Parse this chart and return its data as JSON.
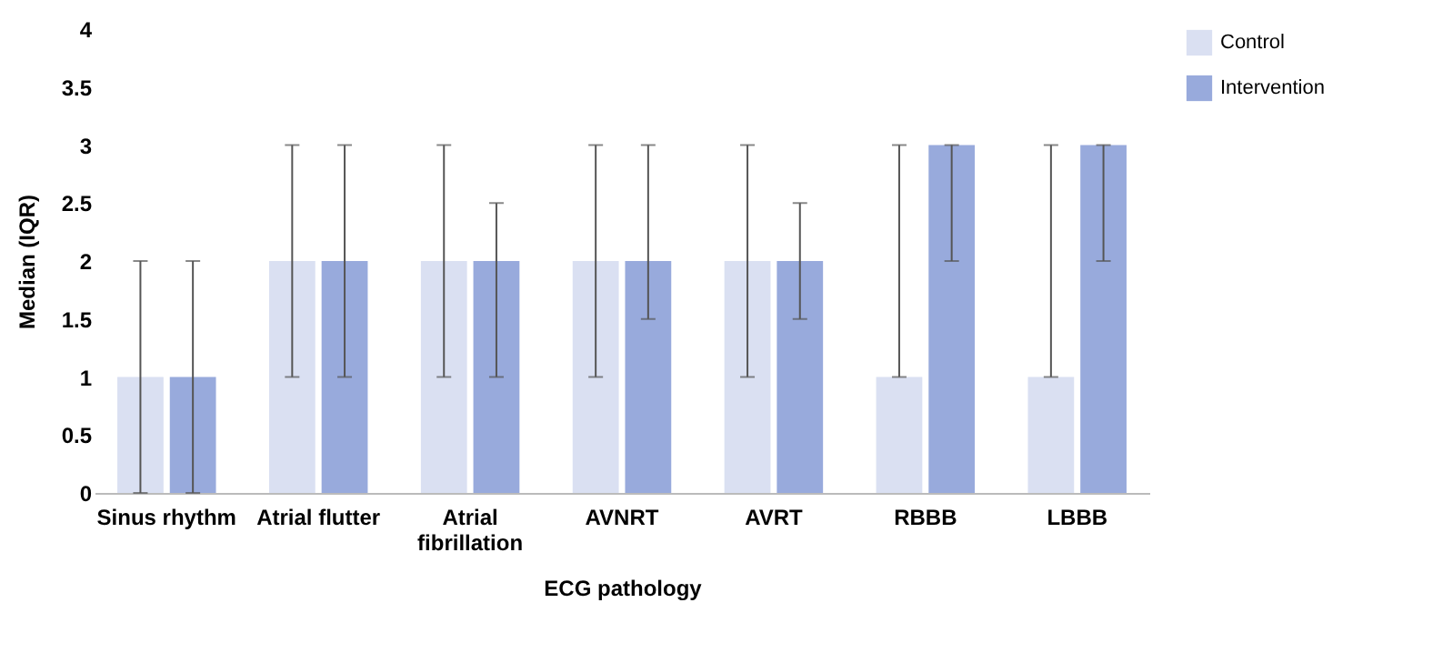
{
  "chart_data": {
    "type": "bar",
    "xlabel": "ECG pathology",
    "ylabel": "Median (IQR)",
    "categories": [
      "Sinus rhythm",
      "Atrial flutter",
      "Atrial fibrillation",
      "AVNRT",
      "AVRT",
      "RBBB",
      "LBBB"
    ],
    "series": [
      {
        "name": "Control",
        "color": "#dae0f2",
        "values": [
          1,
          2,
          2,
          2,
          2,
          1,
          1
        ],
        "errors": [
          [
            0,
            2
          ],
          [
            1,
            3
          ],
          [
            1,
            3
          ],
          [
            1,
            3
          ],
          [
            1,
            3
          ],
          [
            1,
            3
          ],
          [
            1,
            3
          ]
        ]
      },
      {
        "name": "Intervention",
        "color": "#98aadc",
        "values": [
          1,
          2,
          2,
          2,
          2,
          3,
          3
        ],
        "errors": [
          [
            0,
            2
          ],
          [
            1,
            3
          ],
          [
            1,
            2.5
          ],
          [
            1.5,
            3
          ],
          [
            1.5,
            2.5
          ],
          [
            2,
            3
          ],
          [
            2,
            3
          ]
        ]
      }
    ],
    "ylim": [
      0,
      4
    ],
    "yticks": [
      0,
      0.5,
      1,
      1.5,
      2,
      2.5,
      3,
      3.5,
      4
    ],
    "grid": false,
    "legend": "top right"
  }
}
